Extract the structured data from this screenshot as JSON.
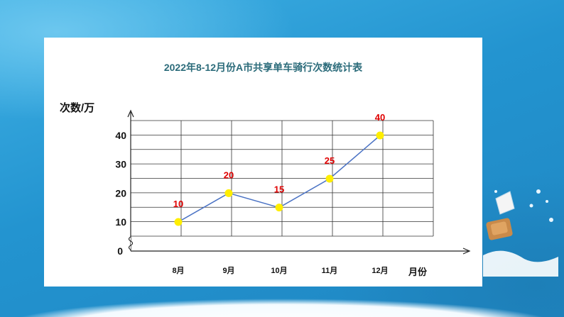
{
  "chart_data": {
    "type": "line",
    "title": "2022年8-12月份A市共享单车骑行次数统计表",
    "xlabel": "月份",
    "ylabel": "次数/万",
    "categories": [
      "8月",
      "9月",
      "10月",
      "11月",
      "12月"
    ],
    "values": [
      10,
      20,
      15,
      25,
      40
    ],
    "data_labels": [
      "10",
      "20",
      "15",
      "25",
      "40"
    ],
    "yticks": [
      "0",
      "10",
      "20",
      "30",
      "40"
    ],
    "ylim": [
      0,
      45
    ],
    "grid": true,
    "axis_break": true,
    "colors": {
      "line": "#4a72c4",
      "point": "#ffee00",
      "label": "#e00000",
      "grid": "#333333"
    }
  }
}
